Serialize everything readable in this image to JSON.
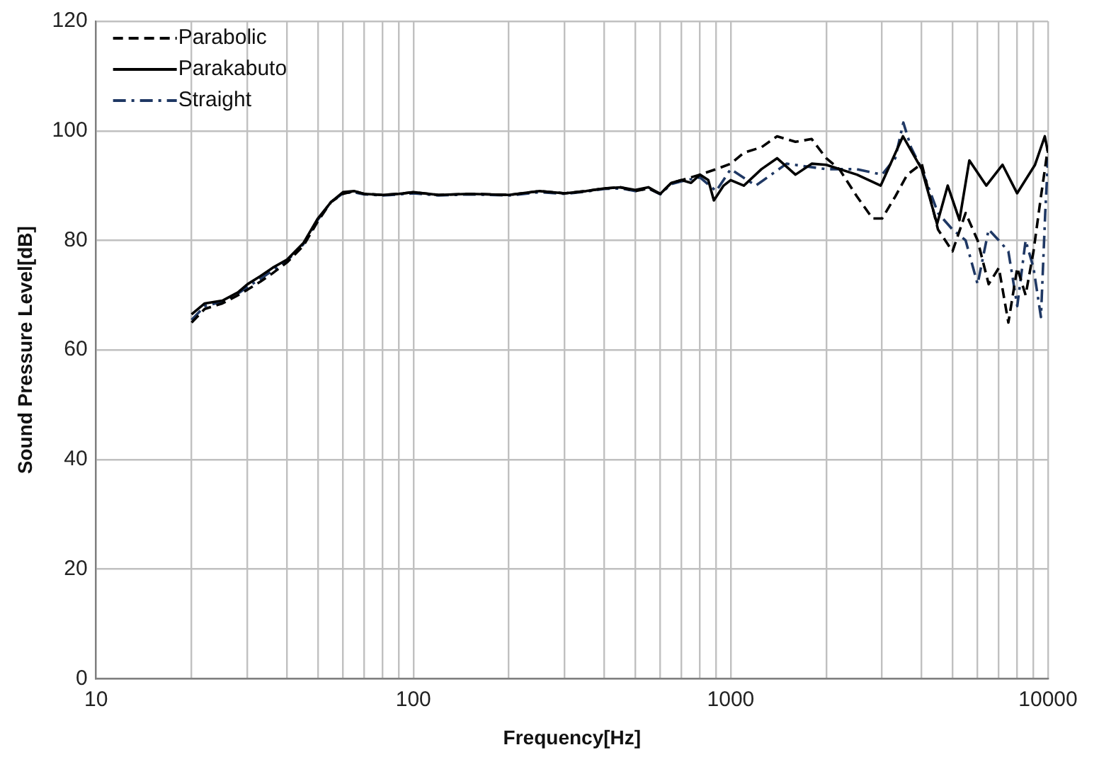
{
  "chart_data": {
    "type": "line",
    "xlabel": "Frequency[Hz]",
    "ylabel": "Sound Pressure Level[dB]",
    "log": "x",
    "grid": true,
    "legend": "top left",
    "marker": "none",
    "xlim": [
      10,
      10000
    ],
    "xticks": [
      10,
      {
        "value": 20,
        "label": null
      },
      {
        "value": 30,
        "label": null
      },
      {
        "value": 40,
        "label": null
      },
      {
        "value": 50,
        "label": null
      },
      {
        "value": 60,
        "label": null
      },
      {
        "value": 70,
        "label": null
      },
      {
        "value": 80,
        "label": null
      },
      {
        "value": 90,
        "label": null
      },
      100,
      {
        "value": 200,
        "label": null
      },
      {
        "value": 300,
        "label": null
      },
      {
        "value": 400,
        "label": null
      },
      {
        "value": 500,
        "label": null
      },
      {
        "value": 600,
        "label": null
      },
      {
        "value": 700,
        "label": null
      },
      {
        "value": 800,
        "label": null
      },
      {
        "value": 900,
        "label": null
      },
      1000,
      {
        "value": 2000,
        "label": null
      },
      {
        "value": 3000,
        "label": null
      },
      {
        "value": 4000,
        "label": null
      },
      {
        "value": 5000,
        "label": null
      },
      {
        "value": 6000,
        "label": null
      },
      {
        "value": 7000,
        "label": null
      },
      {
        "value": 8000,
        "label": null
      },
      {
        "value": 9000,
        "label": null
      },
      10000
    ],
    "ylim": [
      0,
      120
    ],
    "yticks": [
      0,
      20,
      40,
      60,
      80,
      100,
      120
    ],
    "series": [
      {
        "name": "Parabolic",
        "color": "#000000",
        "line_style": "dashed",
        "x": [
          20,
          22,
          25,
          28,
          30,
          33,
          36,
          40,
          45,
          50,
          55,
          60,
          65,
          70,
          80,
          90,
          100,
          120,
          150,
          200,
          250,
          300,
          350,
          400,
          450,
          500,
          550,
          600,
          650,
          700,
          800,
          900,
          1000,
          1100,
          1250,
          1400,
          1600,
          1800,
          2000,
          2200,
          2500,
          2800,
          3000,
          3300,
          3600,
          4000,
          4500,
          5000,
          5500,
          6000,
          6500,
          7000,
          7500,
          8000,
          8500,
          9000,
          9500,
          10000
        ],
        "values": [
          65,
          67.5,
          68.5,
          70,
          71,
          72.5,
          74,
          76,
          79,
          83.5,
          87,
          88.5,
          89,
          88.5,
          88.3,
          88.5,
          88.8,
          88.3,
          88.5,
          88.3,
          89,
          88.6,
          89,
          89.5,
          89.7,
          89,
          89.5,
          88.5,
          90.5,
          91,
          92,
          93,
          94,
          96,
          97,
          99,
          98,
          98.5,
          95,
          93,
          88,
          84,
          84,
          88,
          92,
          94,
          82,
          78,
          85,
          80,
          72,
          75,
          65,
          75,
          70,
          78,
          88,
          97
        ]
      },
      {
        "name": "Parakabuto",
        "color": "#000000",
        "line_style": "solid",
        "x": [
          20,
          22,
          25,
          28,
          30,
          33,
          36,
          40,
          45,
          50,
          55,
          60,
          65,
          70,
          80,
          90,
          100,
          120,
          150,
          200,
          250,
          300,
          350,
          400,
          450,
          500,
          550,
          600,
          650,
          700,
          750,
          800,
          850,
          885,
          950,
          1000,
          1100,
          1250,
          1400,
          1600,
          1800,
          2000,
          2500,
          2970,
          3490,
          4000,
          4470,
          4830,
          5260,
          5650,
          6390,
          7190,
          7990,
          9100,
          9770,
          10000
        ],
        "values": [
          66.5,
          68.5,
          69,
          70.5,
          72,
          73.5,
          75,
          76.5,
          79.5,
          84,
          87,
          88.8,
          89,
          88.5,
          88.3,
          88.5,
          88.8,
          88.3,
          88.5,
          88.3,
          89,
          88.6,
          89,
          89.5,
          89.7,
          89.2,
          89.7,
          88.5,
          90.5,
          91,
          90.5,
          92,
          91,
          87.3,
          90,
          91,
          90,
          93,
          95,
          92,
          94,
          93.8,
          92,
          90,
          99,
          93,
          83,
          90,
          83.7,
          94.6,
          90,
          93.8,
          88.6,
          93.8,
          99,
          96
        ]
      },
      {
        "name": "Straight",
        "color": "#1f3864",
        "line_style": "dashdot",
        "x": [
          20,
          22,
          25,
          28,
          30,
          33,
          36,
          40,
          45,
          50,
          55,
          60,
          65,
          70,
          80,
          90,
          100,
          120,
          150,
          200,
          250,
          300,
          350,
          400,
          450,
          500,
          550,
          600,
          650,
          700,
          800,
          900,
          1000,
          1200,
          1500,
          2000,
          2500,
          3000,
          3300,
          3500,
          3700,
          4000,
          4500,
          5000,
          5500,
          6000,
          6500,
          7000,
          7500,
          8000,
          8500,
          9000,
          9500,
          9800,
          10000
        ],
        "values": [
          65.5,
          68,
          68.8,
          70.3,
          71.5,
          73,
          74.5,
          76.3,
          79.3,
          83.8,
          87,
          88.6,
          88.8,
          88.4,
          88.2,
          88.4,
          88.6,
          88.2,
          88.4,
          88.2,
          88.8,
          88.5,
          88.9,
          89.4,
          89.5,
          89,
          89.5,
          88.4,
          90.3,
          90.8,
          91.5,
          89,
          93,
          90,
          94,
          93,
          93,
          92,
          95,
          101.5,
          97,
          93,
          85,
          82,
          80,
          72,
          82,
          80,
          78,
          68,
          80,
          75,
          66,
          85,
          95
        ]
      }
    ]
  }
}
